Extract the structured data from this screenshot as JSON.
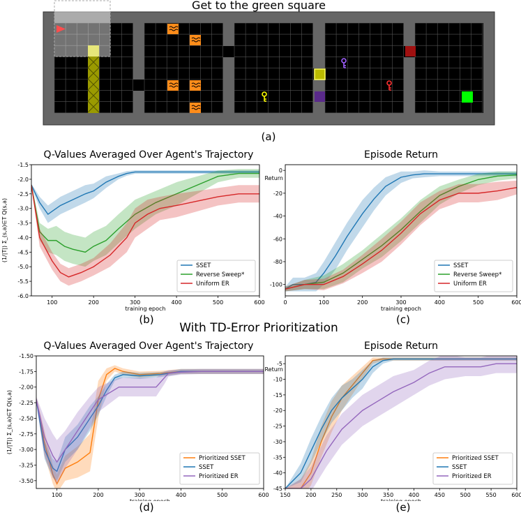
{
  "panel_a": {
    "title": "Get to the green square",
    "label": "(a)"
  },
  "section_title": "With TD-Error Prioritization",
  "panel_labels": [
    "(b)",
    "(c)",
    "(d)",
    "(e)"
  ],
  "colors": {
    "SSET": "#1f77b4",
    "Reverse Sweep*": "#2ca02c",
    "Uniform ER": "#d62728",
    "Prioritized SSET": "#ff7f0e",
    "Prioritized ER": "#9467bd"
  },
  "chart_data": [
    {
      "id": "b",
      "type": "line",
      "title": "Q-Values Averaged Over Agent's Trajectory",
      "xlabel": "training epoch",
      "ylabel": "(1/|T|) Σ_(s,a)∈T Q(s,a)",
      "xlim": [
        50,
        600
      ],
      "ylim": [
        -6.0,
        -1.5
      ],
      "xticks": [
        100,
        200,
        300,
        400,
        500,
        600
      ],
      "yticks": [
        -6.0,
        -5.5,
        -5.0,
        -4.5,
        -4.0,
        -3.5,
        -3.0,
        -2.5,
        -2.0,
        -1.5
      ],
      "ytick_decimals": 1,
      "legend_position": "lower-right",
      "series": [
        {
          "name": "SSET",
          "x": [
            50,
            70,
            90,
            100,
            120,
            150,
            180,
            200,
            230,
            260,
            280,
            300,
            350,
            400,
            450,
            500,
            550,
            600
          ],
          "y": [
            -2.2,
            -2.8,
            -3.2,
            -3.1,
            -2.9,
            -2.7,
            -2.5,
            -2.4,
            -2.1,
            -1.9,
            -1.8,
            -1.75,
            -1.75,
            -1.75,
            -1.75,
            -1.75,
            -1.75,
            -1.75
          ],
          "band": [
            0.05,
            0.2,
            0.3,
            0.3,
            0.3,
            0.3,
            0.3,
            0.25,
            0.2,
            0.1,
            0.08,
            0.06,
            0.06,
            0.06,
            0.06,
            0.06,
            0.06,
            0.06
          ]
        },
        {
          "name": "Reverse Sweep*",
          "x": [
            50,
            70,
            90,
            110,
            130,
            150,
            180,
            200,
            230,
            260,
            300,
            350,
            400,
            450,
            500,
            550,
            600
          ],
          "y": [
            -2.2,
            -3.8,
            -4.1,
            -4.1,
            -4.3,
            -4.4,
            -4.5,
            -4.3,
            -4.1,
            -3.7,
            -3.2,
            -2.8,
            -2.5,
            -2.2,
            -1.9,
            -1.8,
            -1.8
          ],
          "band": [
            0.05,
            0.3,
            0.4,
            0.5,
            0.5,
            0.5,
            0.5,
            0.5,
            0.5,
            0.5,
            0.5,
            0.4,
            0.4,
            0.3,
            0.2,
            0.15,
            0.15
          ]
        },
        {
          "name": "Uniform ER",
          "x": [
            50,
            70,
            100,
            120,
            140,
            170,
            200,
            240,
            280,
            300,
            330,
            360,
            400,
            450,
            500,
            550,
            600
          ],
          "y": [
            -2.2,
            -4.0,
            -4.8,
            -5.2,
            -5.35,
            -5.2,
            -5.0,
            -4.6,
            -4.0,
            -3.5,
            -3.2,
            -3.0,
            -2.9,
            -2.75,
            -2.6,
            -2.5,
            -2.5
          ],
          "band": [
            0.05,
            0.3,
            0.3,
            0.3,
            0.3,
            0.3,
            0.3,
            0.4,
            0.5,
            0.5,
            0.5,
            0.4,
            0.4,
            0.35,
            0.3,
            0.3,
            0.3
          ]
        }
      ]
    },
    {
      "id": "c",
      "type": "line",
      "title": "Episode Return",
      "xlabel": "training epoch",
      "ylabel": "Return",
      "xlim": [
        0,
        600
      ],
      "ylim": [
        -110,
        5
      ],
      "xticks": [
        0,
        100,
        200,
        300,
        400,
        500,
        600
      ],
      "yticks": [
        -100,
        -80,
        -60,
        -40,
        -20,
        0
      ],
      "ytick_decimals": 0,
      "legend_position": "lower-right",
      "series": [
        {
          "name": "SSET",
          "x": [
            0,
            20,
            50,
            80,
            100,
            130,
            160,
            200,
            230,
            260,
            300,
            330,
            360,
            400,
            450,
            500,
            550,
            600
          ],
          "y": [
            -104,
            -100,
            -100,
            -98,
            -90,
            -75,
            -58,
            -38,
            -25,
            -14,
            -6,
            -4,
            -3,
            -3,
            -3,
            -3,
            -3,
            -3
          ],
          "band": [
            2,
            6,
            6,
            8,
            10,
            12,
            12,
            12,
            10,
            8,
            5,
            3,
            3,
            2,
            2,
            2,
            2,
            2
          ]
        },
        {
          "name": "Reverse Sweep*",
          "x": [
            0,
            50,
            100,
            150,
            200,
            250,
            300,
            350,
            400,
            450,
            500,
            550,
            600
          ],
          "y": [
            -104,
            -100,
            -98,
            -90,
            -78,
            -66,
            -52,
            -36,
            -22,
            -14,
            -8,
            -5,
            -4
          ],
          "band": [
            2,
            4,
            6,
            8,
            8,
            10,
            10,
            10,
            8,
            6,
            5,
            4,
            3
          ]
        },
        {
          "name": "Uniform ER",
          "x": [
            0,
            50,
            100,
            150,
            200,
            250,
            300,
            350,
            400,
            450,
            500,
            550,
            600
          ],
          "y": [
            -104,
            -100,
            -100,
            -93,
            -82,
            -70,
            -55,
            -38,
            -26,
            -20,
            -20,
            -18,
            -15
          ],
          "band": [
            2,
            4,
            5,
            6,
            8,
            10,
            10,
            10,
            8,
            8,
            8,
            8,
            6
          ]
        }
      ]
    },
    {
      "id": "d",
      "type": "line",
      "title": "Q-Values Averaged Over Agent's Trajectory",
      "xlabel": "training epoch",
      "ylabel": "(1/|T|) Σ_(s,a)∈T Q(s,a)",
      "xlim": [
        50,
        600
      ],
      "ylim": [
        -3.625,
        -1.5
      ],
      "xticks": [
        100,
        200,
        300,
        400,
        500,
        600
      ],
      "yticks": [
        -3.5,
        -3.25,
        -3.0,
        -2.75,
        -2.5,
        -2.25,
        -2.0,
        -1.75,
        -1.5
      ],
      "ytick_decimals": 2,
      "legend_position": "lower-right",
      "series": [
        {
          "name": "Prioritized SSET",
          "x": [
            50,
            70,
            90,
            100,
            120,
            150,
            180,
            200,
            220,
            240,
            260,
            300,
            350,
            400,
            450,
            500,
            550,
            600
          ],
          "y": [
            -2.2,
            -2.9,
            -3.4,
            -3.55,
            -3.3,
            -3.2,
            -3.05,
            -2.2,
            -1.8,
            -1.7,
            -1.75,
            -1.8,
            -1.78,
            -1.75,
            -1.75,
            -1.75,
            -1.75,
            -1.75
          ],
          "band": [
            0.05,
            0.2,
            0.15,
            0.15,
            0.2,
            0.25,
            0.3,
            0.3,
            0.1,
            0.05,
            0.05,
            0.05,
            0.04,
            0.04,
            0.04,
            0.04,
            0.04,
            0.04
          ]
        },
        {
          "name": "SSET",
          "x": [
            50,
            70,
            90,
            100,
            120,
            150,
            180,
            200,
            220,
            240,
            260,
            300,
            350,
            400,
            450,
            500,
            550,
            600
          ],
          "y": [
            -2.2,
            -3.0,
            -3.3,
            -3.35,
            -3.0,
            -2.8,
            -2.5,
            -2.3,
            -2.05,
            -1.85,
            -1.8,
            -1.82,
            -1.8,
            -1.75,
            -1.75,
            -1.75,
            -1.75,
            -1.75
          ],
          "band": [
            0.05,
            0.15,
            0.15,
            0.15,
            0.2,
            0.2,
            0.2,
            0.15,
            0.1,
            0.05,
            0.05,
            0.05,
            0.04,
            0.04,
            0.04,
            0.04,
            0.04,
            0.04
          ]
        },
        {
          "name": "Prioritized ER",
          "x": [
            50,
            70,
            90,
            100,
            120,
            150,
            180,
            200,
            250,
            300,
            340,
            360,
            370,
            400,
            450,
            500,
            550,
            600
          ],
          "y": [
            -2.2,
            -2.8,
            -3.1,
            -3.2,
            -3.0,
            -2.7,
            -2.4,
            -2.2,
            -2.0,
            -2.0,
            -2.0,
            -1.85,
            -1.78,
            -1.76,
            -1.75,
            -1.75,
            -1.75,
            -1.75
          ],
          "band": [
            0.05,
            0.3,
            0.35,
            0.35,
            0.3,
            0.3,
            0.25,
            0.2,
            0.15,
            0.15,
            0.15,
            0.1,
            0.05,
            0.04,
            0.04,
            0.04,
            0.04,
            0.04
          ]
        }
      ]
    },
    {
      "id": "e",
      "type": "line",
      "title": "Episode Return",
      "xlabel": "training epoch",
      "ylabel": "Return",
      "xlim": [
        150,
        600
      ],
      "ylim": [
        -45,
        -2.5
      ],
      "xticks": [
        150,
        200,
        250,
        300,
        350,
        400,
        450,
        500,
        550,
        600
      ],
      "yticks": [
        -45,
        -40,
        -35,
        -30,
        -25,
        -20,
        -15,
        -10,
        -5
      ],
      "ytick_decimals": 0,
      "legend_position": "lower-right",
      "series": [
        {
          "name": "Prioritized SSET",
          "x": [
            150,
            180,
            200,
            220,
            240,
            260,
            280,
            300,
            320,
            340,
            360,
            400,
            450,
            500,
            550,
            600
          ],
          "y": [
            -45,
            -45,
            -40,
            -30,
            -22,
            -16,
            -12,
            -8,
            -4,
            -3.5,
            -3.5,
            -3.5,
            -3.5,
            -3.5,
            -3.5,
            -3.5
          ],
          "band": [
            0,
            3,
            4,
            5,
            5,
            4,
            3,
            2,
            1,
            0.5,
            0.5,
            0.5,
            0.5,
            0.5,
            0.5,
            0.5
          ]
        },
        {
          "name": "SSET",
          "x": [
            150,
            180,
            200,
            220,
            240,
            260,
            280,
            300,
            320,
            340,
            360,
            400,
            450,
            500,
            550,
            600
          ],
          "y": [
            -45,
            -40,
            -33,
            -26,
            -20,
            -16,
            -13,
            -10,
            -6,
            -4,
            -3.5,
            -3.5,
            -3.5,
            -3.5,
            -3.5,
            -3.5
          ],
          "band": [
            0,
            3,
            4,
            4,
            4,
            4,
            3,
            3,
            2,
            1,
            0.5,
            0.5,
            0.5,
            0.5,
            0.5,
            0.5
          ]
        },
        {
          "name": "Prioritized ER",
          "x": [
            150,
            180,
            200,
            230,
            260,
            300,
            330,
            360,
            400,
            430,
            460,
            500,
            530,
            560,
            600
          ],
          "y": [
            -45,
            -45,
            -42,
            -33,
            -26,
            -20,
            -17,
            -14,
            -11,
            -8,
            -6,
            -6,
            -6,
            -5,
            -5
          ],
          "band": [
            0,
            3,
            4,
            5,
            5,
            5,
            5,
            5,
            4,
            4,
            4,
            3,
            3,
            3,
            3
          ]
        }
      ]
    }
  ]
}
